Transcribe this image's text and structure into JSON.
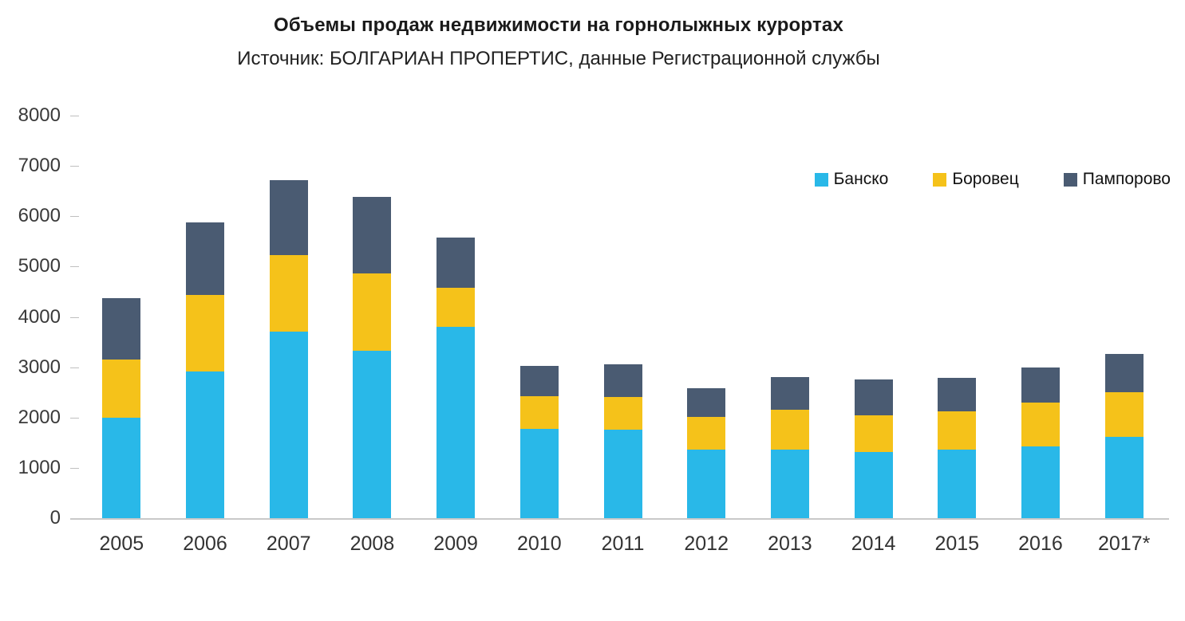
{
  "title": "Объемы продаж недвижимости на горнолыжных курортах",
  "subtitle": "Источник: БОЛГАРИАН ПРОПЕРТИС, данные Регистрационной службы",
  "legend": [
    {
      "label": "Банско",
      "color": "#29b8e8"
    },
    {
      "label": "Боровец",
      "color": "#f5c21a"
    },
    {
      "label": "Пампорово",
      "color": "#4a5b72"
    }
  ],
  "chart_data": {
    "type": "bar",
    "stacked": true,
    "title": "Объемы продаж недвижимости на горнолыжных курортах",
    "subtitle": "Источник: БОЛГАРИАН ПРОПЕРТИС, данные Регистрационной службы",
    "categories": [
      "2005",
      "2006",
      "2007",
      "2008",
      "2009",
      "2010",
      "2011",
      "2012",
      "2013",
      "2014",
      "2015",
      "2016",
      "2017*"
    ],
    "series": [
      {
        "name": "Банско",
        "color": "#29b8e8",
        "values": [
          2000,
          2920,
          3700,
          3330,
          3800,
          1770,
          1760,
          1360,
          1360,
          1320,
          1370,
          1420,
          1620
        ]
      },
      {
        "name": "Боровец",
        "color": "#f5c21a",
        "values": [
          1150,
          1510,
          1530,
          1540,
          780,
          650,
          650,
          650,
          800,
          720,
          760,
          880,
          880
        ]
      },
      {
        "name": "Пампорово",
        "color": "#4a5b72",
        "values": [
          1220,
          1440,
          1490,
          1510,
          1000,
          600,
          650,
          570,
          640,
          720,
          660,
          690,
          770
        ]
      }
    ],
    "xlabel": "",
    "ylabel": "",
    "ylim": [
      0,
      8000
    ],
    "yticks": [
      0,
      1000,
      2000,
      3000,
      4000,
      5000,
      6000,
      7000,
      8000
    ],
    "grid": false,
    "legend_position": "top-right"
  }
}
